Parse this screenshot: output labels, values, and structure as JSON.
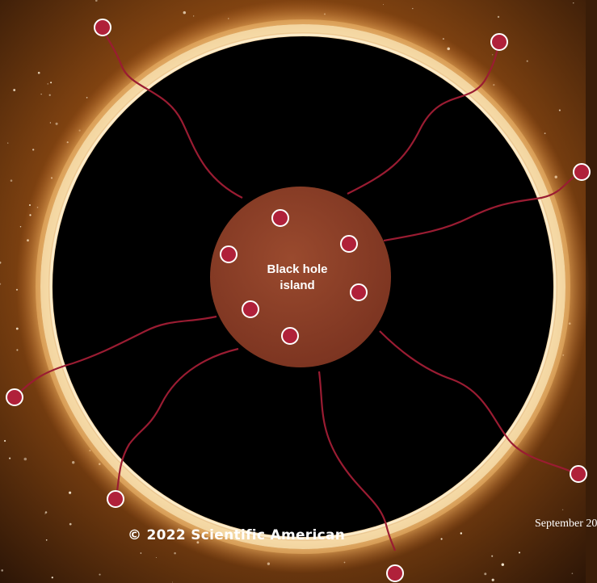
{
  "diagram": {
    "island_label_line1": "Black hole",
    "island_label_line2": "island",
    "copyright": "© 2022 Scientific American",
    "issue_date": "September 20"
  },
  "colors": {
    "background_dark": "#2a1406",
    "accretion_ring": "#f3d39a",
    "black_hole": "#000000",
    "island_fill": "#8a3b24",
    "particle_fill": "#b0213a",
    "particle_stroke": "#ffffff",
    "tether_stroke": "#b0213a"
  }
}
